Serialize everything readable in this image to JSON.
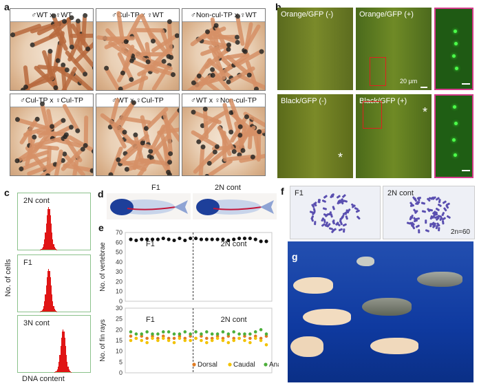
{
  "panels": {
    "a": {
      "label": "a",
      "crosses": [
        "♂WT x ♀WT",
        "♂Cul-TP x ♀WT",
        "♂Non-cul-TP x ♀WT",
        "♂Cul-TP x ♀Cul-TP",
        "♂WT x ♀Cul-TP",
        "♂WT x ♀Non-cul-TP"
      ]
    },
    "b": {
      "label": "b",
      "images": [
        "Orange/GFP (-)",
        "Orange/GFP (+)",
        "Black/GFP (-)",
        "Black/GFP (+)"
      ],
      "scale": "20 µm",
      "star": "*"
    },
    "c": {
      "label": "c",
      "ylabel": "No. of cells",
      "xlabel": "DNA content",
      "histograms": [
        {
          "name": "2N cont",
          "peak": 0.42
        },
        {
          "name": "F1",
          "peak": 0.42
        },
        {
          "name": "3N cont",
          "peak": 0.62
        }
      ]
    },
    "d": {
      "label": "d",
      "left": "F1",
      "right": "2N cont"
    },
    "e": {
      "label": "e",
      "left_group": "F1",
      "right_group": "2N cont"
    },
    "f": {
      "label": "f",
      "left": "F1",
      "right": "2N cont",
      "note": "2n=60"
    },
    "g": {
      "label": "g"
    }
  },
  "chart_data": [
    {
      "type": "scatter",
      "ylabel": "No. of vertebrae",
      "ylim": [
        0,
        70
      ],
      "yticks": [
        0,
        10,
        20,
        30,
        40,
        50,
        60,
        70
      ],
      "groups": [
        "F1",
        "2N cont"
      ],
      "x": [
        1,
        2,
        3,
        4,
        5,
        6,
        7,
        8,
        9,
        10,
        11,
        12,
        13,
        14,
        15,
        16,
        17,
        18,
        19,
        20,
        21,
        22,
        23,
        24,
        25,
        26
      ],
      "values": [
        63,
        62,
        63,
        63,
        63,
        63,
        64,
        63,
        62,
        64,
        62,
        64,
        64,
        63,
        63,
        63,
        63,
        63,
        62,
        63,
        64,
        64,
        64,
        63,
        61,
        61
      ],
      "extra": [
        {
          "x": 23,
          "y": 62
        },
        {
          "x": 24,
          "y": 62
        },
        {
          "x": 25,
          "y": 63
        },
        {
          "x": 26,
          "y": 61
        }
      ],
      "divider_after": 12,
      "grid": false
    },
    {
      "type": "scatter",
      "ylabel": "No. of fin rays",
      "ylim": [
        0,
        30
      ],
      "yticks": [
        0,
        5,
        10,
        15,
        20,
        25,
        30
      ],
      "groups": [
        "F1",
        "2N cont"
      ],
      "x": [
        1,
        2,
        3,
        4,
        5,
        6,
        7,
        8,
        9,
        10,
        11,
        12,
        13,
        14,
        15,
        16,
        17,
        18,
        19,
        20,
        21,
        22,
        23,
        24,
        25,
        26
      ],
      "series": [
        {
          "name": "Dorsal",
          "color": "#e07b22",
          "values": [
            17,
            16,
            17,
            16,
            17,
            16,
            17,
            16,
            16,
            17,
            16,
            17,
            16,
            17,
            16,
            16,
            17,
            16,
            17,
            16,
            16,
            17,
            16,
            17,
            16,
            17
          ]
        },
        {
          "name": "Caudal",
          "color": "#f2c200",
          "values": [
            15,
            16,
            15,
            14,
            16,
            15,
            16,
            15,
            14,
            16,
            15,
            15,
            16,
            15,
            14,
            15,
            16,
            15,
            14,
            15,
            16,
            15,
            14,
            16,
            15,
            13
          ]
        },
        {
          "name": "Anal",
          "color": "#4caf3a",
          "values": [
            19,
            18,
            18,
            19,
            18,
            18,
            19,
            19,
            18,
            18,
            19,
            18,
            19,
            18,
            19,
            18,
            18,
            19,
            18,
            19,
            18,
            18,
            18,
            19,
            20,
            18
          ]
        }
      ],
      "divider_after": 12,
      "legend": "bottom-right",
      "grid": false
    }
  ]
}
